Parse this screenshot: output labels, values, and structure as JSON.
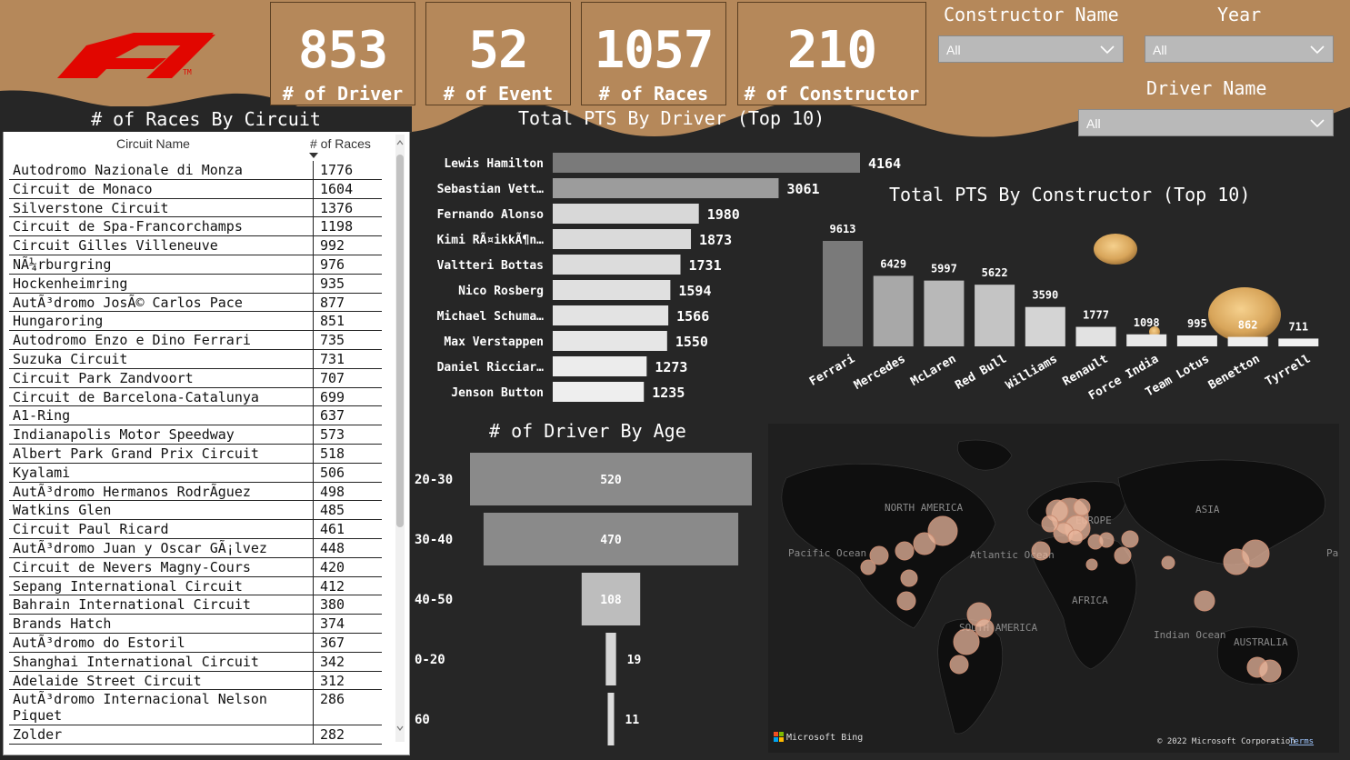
{
  "kpis": [
    {
      "value": "853",
      "label": "# of Driver"
    },
    {
      "value": "52",
      "label": "# of Event"
    },
    {
      "value": "1057",
      "label": "# of Races"
    },
    {
      "value": "210",
      "label": "# of Constructor"
    }
  ],
  "slicers": {
    "constructor": {
      "title": "Constructor Name",
      "value": "All"
    },
    "year": {
      "title": "Year",
      "value": "All"
    },
    "driver": {
      "title": "Driver Name",
      "value": "All"
    }
  },
  "colors": {
    "header": "#b5885a",
    "background": "#262626",
    "bubble": "#e8b59c"
  },
  "table": {
    "title": "# of Races By Circuit",
    "col_name": "Circuit Name",
    "col_value": "# of Races",
    "rows": [
      {
        "name": "Autodromo Nazionale di Monza",
        "races": "1776"
      },
      {
        "name": "Circuit de Monaco",
        "races": "1604"
      },
      {
        "name": "Silverstone Circuit",
        "races": "1376"
      },
      {
        "name": "Circuit de Spa-Francorchamps",
        "races": "1198"
      },
      {
        "name": "Circuit Gilles Villeneuve",
        "races": "992"
      },
      {
        "name": "NÃ¼rburgring",
        "races": "976"
      },
      {
        "name": "Hockenheimring",
        "races": "935"
      },
      {
        "name": "AutÃ³dromo JosÃ© Carlos Pace",
        "races": "877"
      },
      {
        "name": "Hungaroring",
        "races": "851"
      },
      {
        "name": "Autodromo Enzo e Dino Ferrari",
        "races": "735"
      },
      {
        "name": "Suzuka Circuit",
        "races": "731"
      },
      {
        "name": "Circuit Park Zandvoort",
        "races": "707"
      },
      {
        "name": "Circuit de Barcelona-Catalunya",
        "races": "699"
      },
      {
        "name": "A1-Ring",
        "races": "637"
      },
      {
        "name": "Indianapolis Motor Speedway",
        "races": "573"
      },
      {
        "name": "Albert Park Grand Prix Circuit",
        "races": "518"
      },
      {
        "name": "Kyalami",
        "races": "506"
      },
      {
        "name": "AutÃ³dromo Hermanos RodrÃguez",
        "races": "498"
      },
      {
        "name": "Watkins Glen",
        "races": "485"
      },
      {
        "name": "Circuit Paul Ricard",
        "races": "461"
      },
      {
        "name": "AutÃ³dromo Juan y Oscar GÃ¡lvez",
        "races": "448"
      },
      {
        "name": "Circuit de Nevers Magny-Cours",
        "races": "420"
      },
      {
        "name": "Sepang International Circuit",
        "races": "412"
      },
      {
        "name": "Bahrain International Circuit",
        "races": "380"
      },
      {
        "name": "Brands Hatch",
        "races": "374"
      },
      {
        "name": "AutÃ³dromo do Estoril",
        "races": "367"
      },
      {
        "name": "Shanghai International Circuit",
        "races": "342"
      },
      {
        "name": "Adelaide Street Circuit",
        "races": "312"
      },
      {
        "name": "AutÃ³dromo Internacional Nelson Piquet",
        "races": "286"
      },
      {
        "name": "Zolder",
        "races": "282"
      }
    ]
  },
  "chart_data": [
    {
      "type": "bar",
      "orientation": "horizontal",
      "title": "Total PTS By Driver (Top 10)",
      "categories": [
        "Lewis Hamilton",
        "Sebastian Vett…",
        "Fernando Alonso",
        "Kimi RÃ¤ikkÃ¶n…",
        "Valtteri Bottas",
        "Nico Rosberg",
        "Michael Schuma…",
        "Max Verstappen",
        "Daniel Ricciar…",
        "Jenson Button"
      ],
      "values": [
        4164,
        3061,
        1980,
        1873,
        1731,
        1594,
        1566,
        1550,
        1273,
        1235
      ],
      "xlim": [
        0,
        4164
      ]
    },
    {
      "type": "bar",
      "title": "Total PTS By Constructor (Top 10)",
      "categories": [
        "Ferrari",
        "Mercedes",
        "McLaren",
        "Red Bull",
        "Williams",
        "Renault",
        "Force India",
        "Team Lotus",
        "Benetton",
        "Tyrrell"
      ],
      "values": [
        9613,
        6429,
        5997,
        5622,
        3590,
        1777,
        1098,
        995,
        862,
        711
      ],
      "ylim": [
        0,
        9613
      ]
    },
    {
      "type": "bar",
      "subtype": "funnel",
      "title": "# of Driver By Age",
      "categories": [
        "20-30",
        "30-40",
        "40-50",
        "0-20",
        "60"
      ],
      "values": [
        520,
        470,
        108,
        19,
        11
      ]
    }
  ],
  "map": {
    "labels": [
      {
        "text": "NORTH\nAMERICA"
      },
      {
        "text": "EUROPE"
      },
      {
        "text": "ASIA"
      },
      {
        "text": "Pacific\nOcean"
      },
      {
        "text": "Atlantic\nOcean"
      },
      {
        "text": "AFRICA"
      },
      {
        "text": "SOUTH\nAMERICA"
      },
      {
        "text": "Indian\nOcean"
      },
      {
        "text": "AUSTRALIA"
      },
      {
        "text": "Pa\nOc"
      }
    ],
    "brand": "Microsoft Bing",
    "copyright": "© 2022 Microsoft Corporation",
    "terms": "Terms"
  }
}
